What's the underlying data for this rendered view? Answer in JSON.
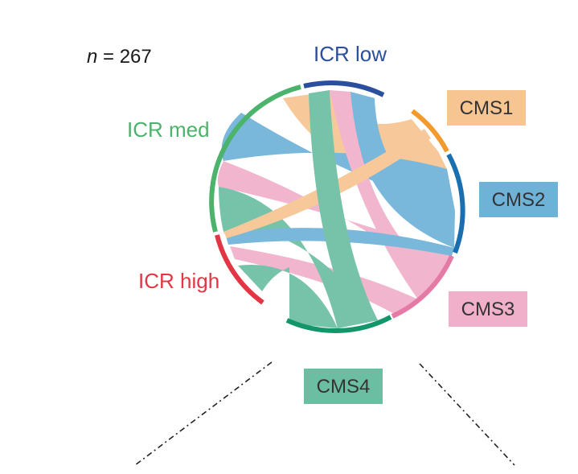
{
  "sample_size": {
    "prefix": "n",
    "text": " = 267"
  },
  "icr_groups": [
    {
      "id": "icr-low",
      "label": "ICR low",
      "color": "#2a4f9e"
    },
    {
      "id": "icr-med",
      "label": "ICR med",
      "color": "#4bb36b"
    },
    {
      "id": "icr-high",
      "label": "ICR high",
      "color": "#e33645"
    }
  ],
  "cms_groups": [
    {
      "id": "cms1",
      "label": "CMS1",
      "color": "#f29a2e",
      "fill": "#f7c592"
    },
    {
      "id": "cms2",
      "label": "CMS2",
      "color": "#1a6fb0",
      "fill": "#6eb2d8"
    },
    {
      "id": "cms3",
      "label": "CMS3",
      "color": "#e57aa6",
      "fill": "#f0b0ca"
    },
    {
      "id": "cms4",
      "label": "CMS4",
      "color": "#12966a",
      "fill": "#6cbea2"
    }
  ]
}
